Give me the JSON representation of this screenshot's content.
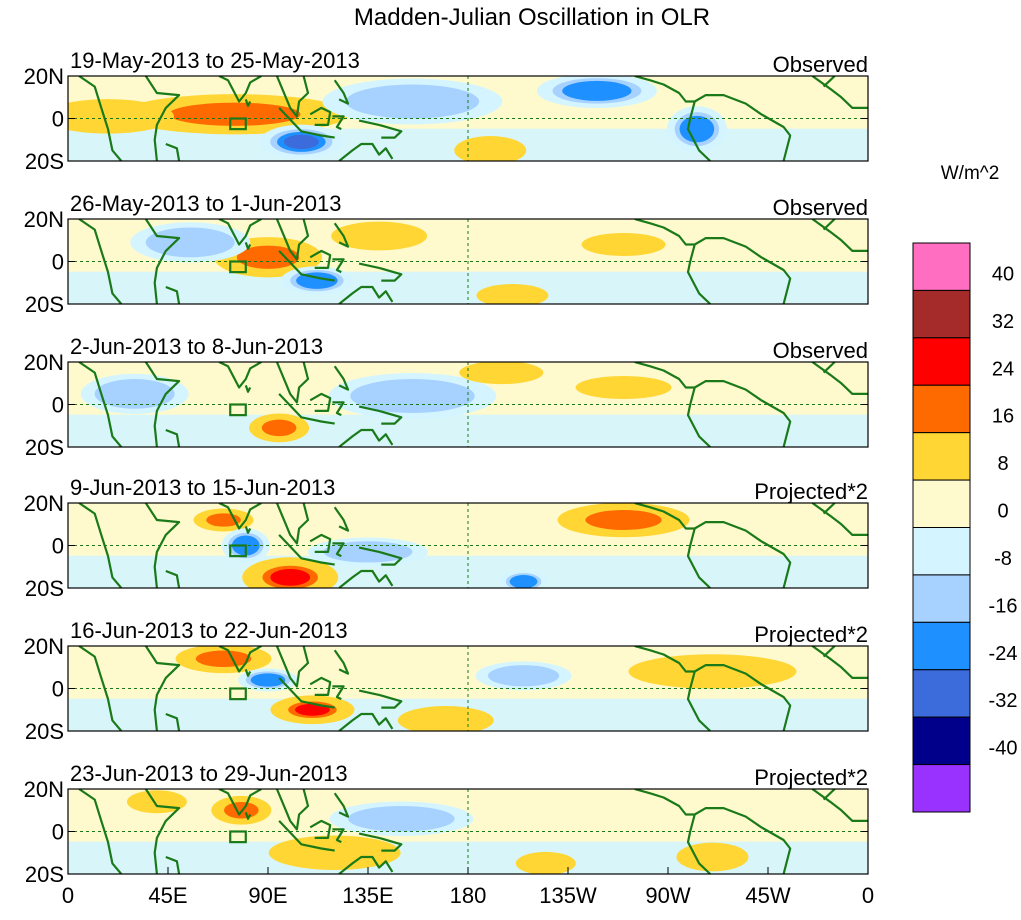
{
  "chart_data": {
    "type": "heatmap",
    "title": "Madden-Julian Oscillation in OLR",
    "colorbar": {
      "label": "W/m^2",
      "ticks": [
        "40",
        "32",
        "24",
        "16",
        "8",
        "0",
        "-8",
        "-16",
        "-24",
        "-32",
        "-40"
      ],
      "colors": [
        "#ff6ec0",
        "#a52a2a",
        "#ff0000",
        "#ff6a00",
        "#ffd633",
        "#fffacd",
        "#d4f5ff",
        "#a7d2ff",
        "#1e90ff",
        "#3c6bdc",
        "#00008b",
        "#9932ff"
      ]
    },
    "x_ticks": [
      "0",
      "45E",
      "90E",
      "135E",
      "180",
      "135W",
      "90W",
      "45W",
      "0"
    ],
    "y_ticks": [
      "20N",
      "0",
      "20S"
    ],
    "panels": [
      {
        "period": "19-May-2013 to 25-May-2013",
        "kind": "Observed",
        "features": [
          {
            "lon": 75,
            "lat": 2,
            "value": 16,
            "rx": 38,
            "ry": 7
          },
          {
            "lon": 18,
            "lat": 1,
            "value": 8,
            "rx": 22,
            "ry": 6
          },
          {
            "lon": 105,
            "lat": -11,
            "value": -24,
            "rx": 14,
            "ry": 6
          },
          {
            "lon": 238,
            "lat": 13,
            "value": -16,
            "rx": 20,
            "ry": 6
          },
          {
            "lon": 283,
            "lat": -5,
            "value": -16,
            "rx": 10,
            "ry": 8
          },
          {
            "lon": 190,
            "lat": -15,
            "value": 8,
            "rx": 12,
            "ry": 5
          },
          {
            "lon": 155,
            "lat": 8,
            "value": -8,
            "rx": 30,
            "ry": 8
          }
        ]
      },
      {
        "period": "26-May-2013 to 1-Jun-2013",
        "kind": "Observed",
        "features": [
          {
            "lon": 90,
            "lat": 2,
            "value": 16,
            "rx": 18,
            "ry": 7
          },
          {
            "lon": 112,
            "lat": -9,
            "value": -16,
            "rx": 12,
            "ry": 5
          },
          {
            "lon": 55,
            "lat": 9,
            "value": -8,
            "rx": 20,
            "ry": 7
          },
          {
            "lon": 200,
            "lat": -16,
            "value": 8,
            "rx": 12,
            "ry": 4
          },
          {
            "lon": 250,
            "lat": 8,
            "value": 8,
            "rx": 14,
            "ry": 4
          },
          {
            "lon": 140,
            "lat": 12,
            "value": 8,
            "rx": 16,
            "ry": 5
          }
        ]
      },
      {
        "period": "2-Jun-2013 to 8-Jun-2013",
        "kind": "Observed",
        "features": [
          {
            "lon": 95,
            "lat": -11,
            "value": 16,
            "rx": 10,
            "ry": 5
          },
          {
            "lon": 155,
            "lat": 4,
            "value": -8,
            "rx": 28,
            "ry": 8
          },
          {
            "lon": 250,
            "lat": 8,
            "value": 8,
            "rx": 16,
            "ry": 4
          },
          {
            "lon": 195,
            "lat": 15,
            "value": 8,
            "rx": 14,
            "ry": 4
          },
          {
            "lon": 30,
            "lat": 5,
            "value": -8,
            "rx": 18,
            "ry": 7
          }
        ]
      },
      {
        "period": "9-Jun-2013 to 15-Jun-2013",
        "kind": "Projected*2",
        "features": [
          {
            "lon": 100,
            "lat": -15,
            "value": 24,
            "rx": 16,
            "ry": 7
          },
          {
            "lon": 70,
            "lat": 12,
            "value": 16,
            "rx": 10,
            "ry": 4
          },
          {
            "lon": 250,
            "lat": 12,
            "value": 16,
            "rx": 22,
            "ry": 6
          },
          {
            "lon": 205,
            "lat": -17,
            "value": -16,
            "rx": 8,
            "ry": 4
          },
          {
            "lon": 135,
            "lat": -3,
            "value": -8,
            "rx": 20,
            "ry": 5
          },
          {
            "lon": 80,
            "lat": 0,
            "value": -16,
            "rx": 8,
            "ry": 6
          }
        ]
      },
      {
        "period": "16-Jun-2013 to 22-Jun-2013",
        "kind": "Projected*2",
        "features": [
          {
            "lon": 110,
            "lat": -10,
            "value": 24,
            "rx": 14,
            "ry": 5
          },
          {
            "lon": 70,
            "lat": 14,
            "value": 16,
            "rx": 16,
            "ry": 5
          },
          {
            "lon": 170,
            "lat": -15,
            "value": 8,
            "rx": 16,
            "ry": 5
          },
          {
            "lon": 290,
            "lat": 8,
            "value": 8,
            "rx": 28,
            "ry": 6
          },
          {
            "lon": 205,
            "lat": 6,
            "value": -8,
            "rx": 16,
            "ry": 5
          },
          {
            "lon": 90,
            "lat": 4,
            "value": -16,
            "rx": 10,
            "ry": 4
          }
        ]
      },
      {
        "period": "23-Jun-2013 to 29-Jun-2013",
        "kind": "Projected*2",
        "features": [
          {
            "lon": 78,
            "lat": 10,
            "value": 16,
            "rx": 10,
            "ry": 5
          },
          {
            "lon": 120,
            "lat": -10,
            "value": 8,
            "rx": 22,
            "ry": 6
          },
          {
            "lon": 215,
            "lat": -15,
            "value": 8,
            "rx": 10,
            "ry": 4
          },
          {
            "lon": 290,
            "lat": -12,
            "value": 8,
            "rx": 12,
            "ry": 5
          },
          {
            "lon": 150,
            "lat": 6,
            "value": -8,
            "rx": 24,
            "ry": 6
          },
          {
            "lon": 40,
            "lat": 14,
            "value": 8,
            "rx": 10,
            "ry": 4
          }
        ]
      }
    ]
  }
}
